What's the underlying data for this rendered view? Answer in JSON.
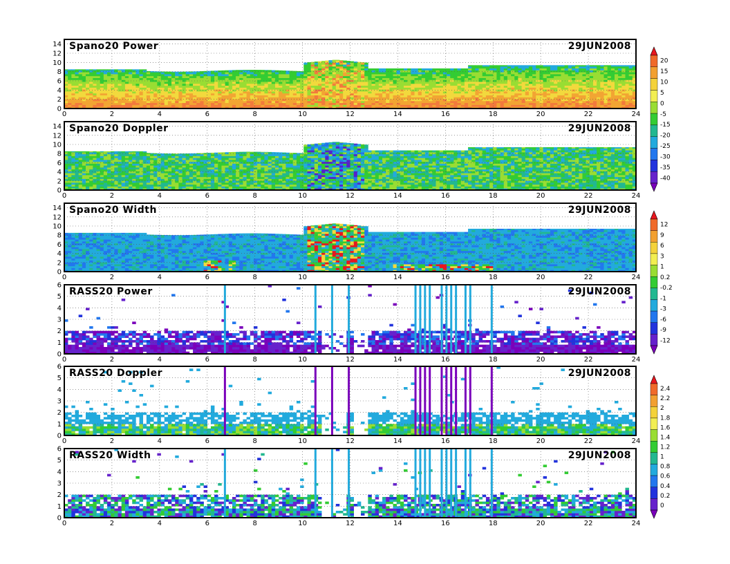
{
  "chart_data": [
    {
      "type": "heatmap",
      "title": "Spano20 Power",
      "date": "29JUN2008",
      "x_ticks": [
        "0",
        "2",
        "4",
        "6",
        "8",
        "10",
        "12",
        "14",
        "16",
        "18",
        "20",
        "22",
        "24"
      ],
      "y_ticks": [
        "0",
        "2",
        "4",
        "6",
        "8",
        "10",
        "12",
        "14"
      ],
      "xlim": [
        0,
        24
      ],
      "ylim": [
        0,
        15
      ],
      "grid": true,
      "colorbar": {
        "labels": [
          "20",
          "15",
          "10",
          "5",
          "0",
          "-5",
          "-15",
          "-20",
          "-25",
          "-30",
          "-35",
          "-40"
        ],
        "colors": [
          "#e8171e",
          "#f06a2a",
          "#f2a030",
          "#f4d23a",
          "#f2ee52",
          "#99dd33",
          "#33cc33",
          "#22b890",
          "#22aadd",
          "#2277ee",
          "#2233dd",
          "#6622cc",
          "#7a00bb"
        ]
      }
    },
    {
      "type": "heatmap",
      "title": "Spano20 Doppler",
      "date": "29JUN2008",
      "x_ticks": [
        "0",
        "2",
        "4",
        "6",
        "8",
        "10",
        "12",
        "14",
        "16",
        "18",
        "20",
        "22",
        "24"
      ],
      "y_ticks": [
        "0",
        "2",
        "4",
        "6",
        "8",
        "10",
        "12",
        "14"
      ],
      "xlim": [
        0,
        24
      ],
      "ylim": [
        0,
        15
      ],
      "grid": true
    },
    {
      "type": "heatmap",
      "title": "Spano20 Width",
      "date": "29JUN2008",
      "x_ticks": [
        "0",
        "2",
        "4",
        "6",
        "8",
        "10",
        "12",
        "14",
        "16",
        "18",
        "20",
        "22",
        "24"
      ],
      "y_ticks": [
        "0",
        "2",
        "4",
        "6",
        "8",
        "10",
        "12",
        "14"
      ],
      "xlim": [
        0,
        24
      ],
      "ylim": [
        0,
        15
      ],
      "grid": true,
      "colorbar": {
        "labels": [
          "12",
          "9",
          "6",
          "3",
          "1",
          "0.2",
          "-0.2",
          "-1",
          "-3",
          "-6",
          "-9",
          "-12"
        ],
        "colors": [
          "#e8171e",
          "#f06a2a",
          "#f2a030",
          "#f4d23a",
          "#f2ee52",
          "#99dd33",
          "#33cc33",
          "#22b890",
          "#22aadd",
          "#2277ee",
          "#2233dd",
          "#6622cc",
          "#7a00bb"
        ]
      }
    },
    {
      "type": "heatmap",
      "title": "RASS20 Power",
      "date": "29JUN2008",
      "x_ticks": [
        "0",
        "2",
        "4",
        "6",
        "8",
        "10",
        "12",
        "14",
        "16",
        "18",
        "20",
        "22",
        "24"
      ],
      "y_ticks": [
        "0",
        "1",
        "2",
        "3",
        "4",
        "5",
        "6"
      ],
      "xlim": [
        0,
        24
      ],
      "ylim": [
        0,
        6
      ],
      "grid": true
    },
    {
      "type": "heatmap",
      "title": "RASS20 Doppler",
      "date": "29JUN2008",
      "x_ticks": [
        "0",
        "2",
        "4",
        "6",
        "8",
        "10",
        "12",
        "14",
        "16",
        "18",
        "20",
        "22",
        "24"
      ],
      "y_ticks": [
        "0",
        "1",
        "2",
        "3",
        "4",
        "5",
        "6"
      ],
      "xlim": [
        0,
        24
      ],
      "ylim": [
        0,
        6
      ],
      "grid": true,
      "colorbar": {
        "labels": [
          "2.4",
          "2.2",
          "2",
          "1.8",
          "1.6",
          "1.4",
          "1.2",
          "1",
          "0.8",
          "0.6",
          "0.4",
          "0.2",
          "0"
        ],
        "colors": [
          "#e8171e",
          "#f06a2a",
          "#f2a030",
          "#f4d23a",
          "#f2ee52",
          "#99dd33",
          "#33cc33",
          "#22b890",
          "#22aadd",
          "#2277ee",
          "#2233dd",
          "#6622cc",
          "#7a00bb"
        ]
      }
    },
    {
      "type": "heatmap",
      "title": "RASS20 Width",
      "date": "29JUN2008",
      "x_ticks": [
        "0",
        "2",
        "4",
        "6",
        "8",
        "10",
        "12",
        "14",
        "16",
        "18",
        "20",
        "22",
        "24"
      ],
      "y_ticks": [
        "0",
        "1",
        "2",
        "3",
        "4",
        "5",
        "6"
      ],
      "xlim": [
        0,
        24
      ],
      "ylim": [
        0,
        6
      ],
      "grid": true
    }
  ],
  "colors": {
    "spano_power": [
      "#f27a3c",
      "#f2a533",
      "#f2d93d",
      "#99dd33",
      "#33cc33",
      "#22aadd",
      "#2277ee"
    ],
    "spano_doppler": [
      "#33cc33",
      "#99dd33",
      "#22b890",
      "#22aadd",
      "#2277ee",
      "#5522cc"
    ],
    "spano_width": [
      "#22aadd",
      "#2277ee",
      "#22b890",
      "#33cc33",
      "#e8171e",
      "#f2d93d"
    ],
    "rass_power": [
      "#7a00bb",
      "#6622cc",
      "#2233dd",
      "#2277ee"
    ],
    "rass_doppler": [
      "#33cc33",
      "#22aadd",
      "#99dd33",
      "#22b890"
    ],
    "rass_width": [
      "#2233dd",
      "#22aadd",
      "#22b890",
      "#33cc33",
      "#6622cc"
    ]
  }
}
